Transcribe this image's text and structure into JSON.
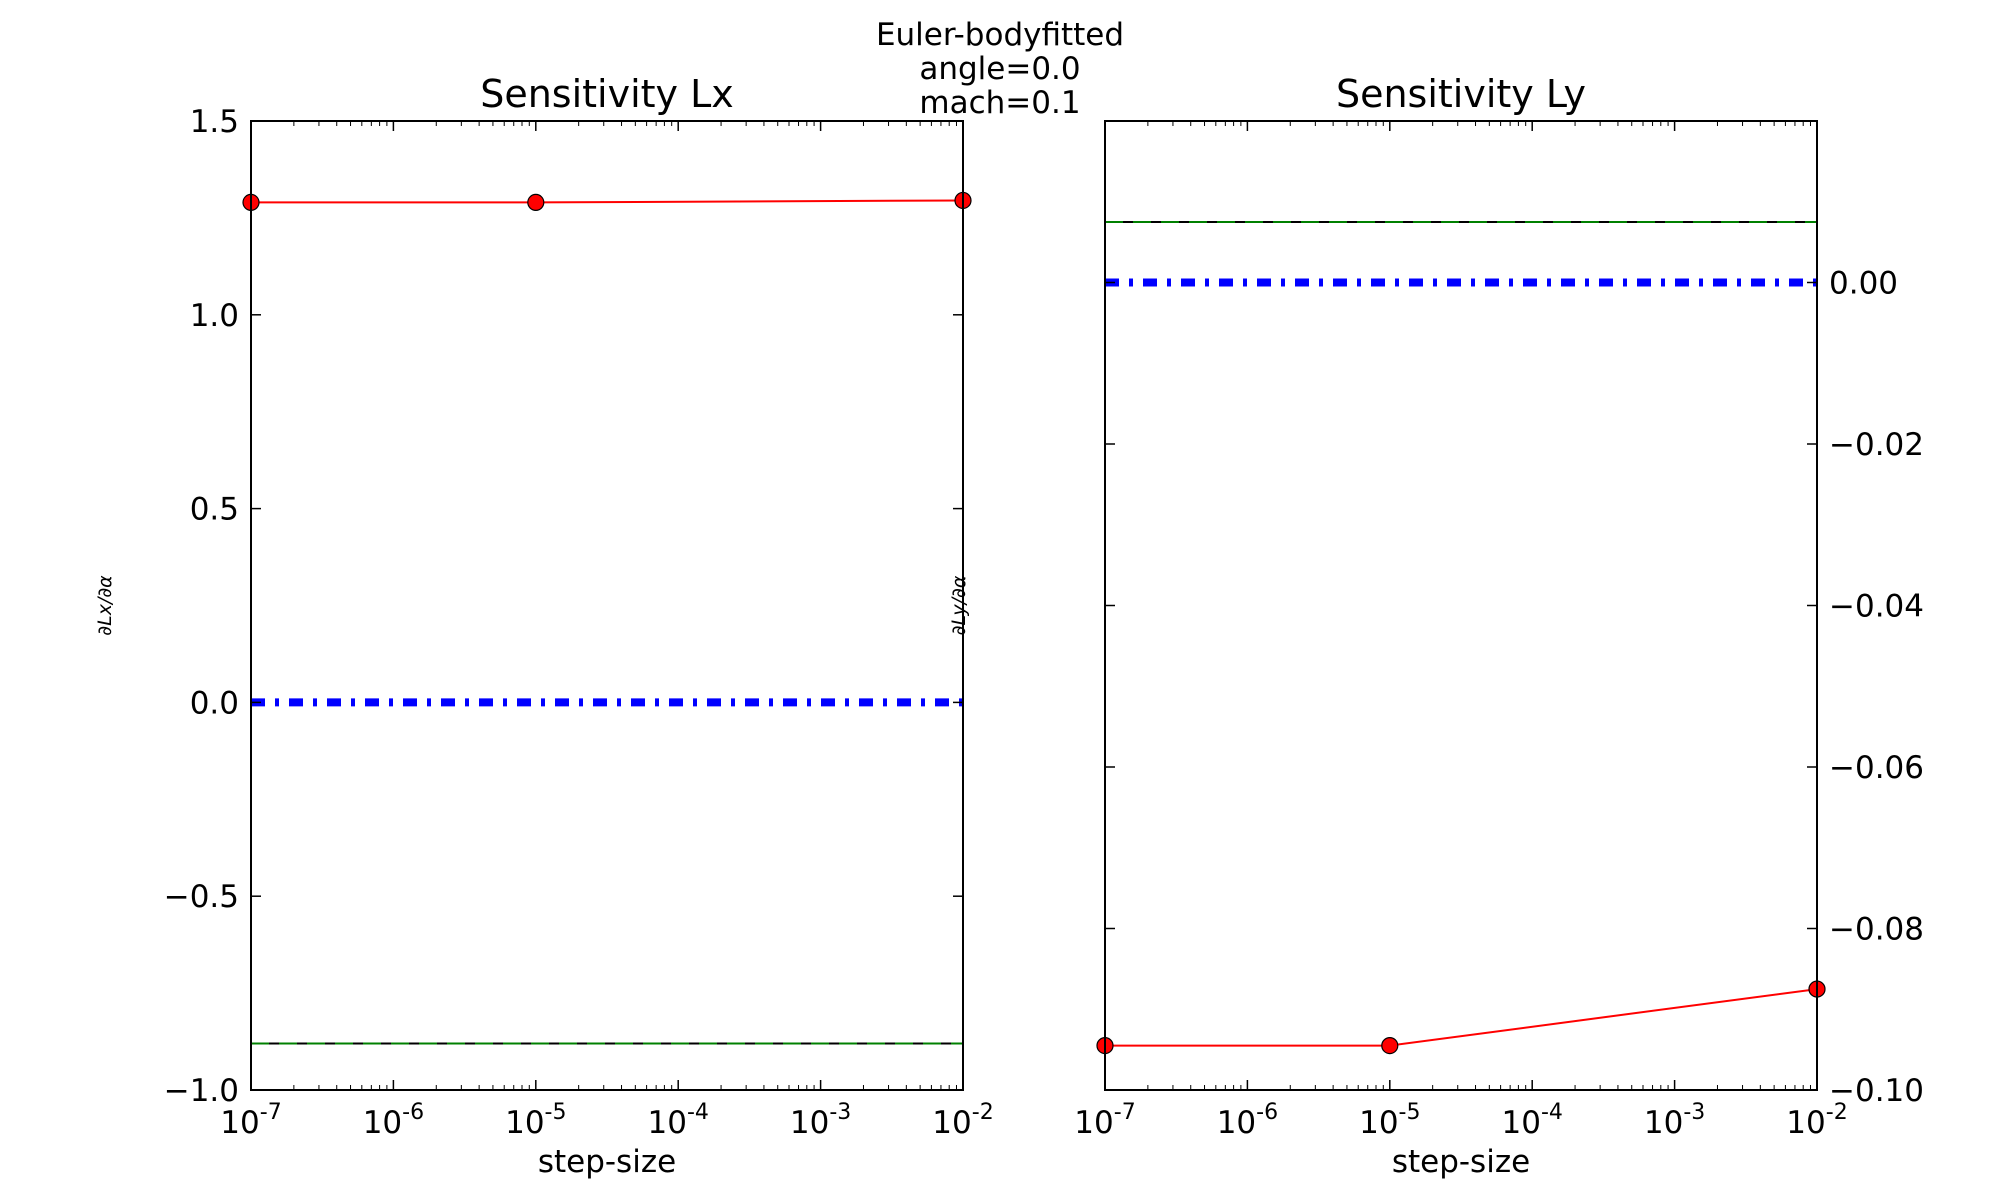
{
  "figure": {
    "suptitle": "Euler-bodyfitted\nangle=0.0\nmach=0.1"
  },
  "chart_data": [
    {
      "type": "line",
      "title": "Sensitivity Lx",
      "xlabel": "step-size",
      "ylabel": "∂Lx/∂α",
      "xscale": "log",
      "xlim": [
        1e-07,
        0.01
      ],
      "ylim": [
        -1.0,
        1.5
      ],
      "xticks": [
        {
          "base": "10",
          "exp": "-7"
        },
        {
          "base": "10",
          "exp": "-6"
        },
        {
          "base": "10",
          "exp": "-5"
        },
        {
          "base": "10",
          "exp": "-4"
        },
        {
          "base": "10",
          "exp": "-3"
        },
        {
          "base": "10",
          "exp": "-2"
        }
      ],
      "yticks": [
        "1.5",
        "1.0",
        "0.5",
        "0.0",
        "−0.5",
        "−1.0"
      ],
      "ytick_values": [
        1.5,
        1.0,
        0.5,
        0.0,
        -0.5,
        -1.0
      ],
      "yaxis_side": "left",
      "grid": false,
      "series": [
        {
          "x": [
            1e-07,
            1e-05,
            0.01
          ],
          "y": [
            1.29,
            1.29,
            1.295
          ],
          "color": "#ff0000",
          "style": "solid",
          "marker": "circle"
        },
        {
          "x": [
            1e-07,
            0.01
          ],
          "y": [
            0.0,
            0.0
          ],
          "color": "#0000ff",
          "style": "dashdot"
        },
        {
          "x": [
            1e-07,
            0.01
          ],
          "y": [
            -0.88,
            -0.88
          ],
          "color": "#000000",
          "style": "solid"
        },
        {
          "x": [
            1e-07,
            0.01
          ],
          "y": [
            -0.88,
            -0.88
          ],
          "color": "#008000",
          "style": "dashed"
        }
      ]
    },
    {
      "type": "line",
      "title": "Sensitivity Ly",
      "xlabel": "step-size",
      "ylabel": "∂Ly/∂α",
      "xscale": "log",
      "xlim": [
        1e-07,
        0.01
      ],
      "ylim": [
        -0.1,
        0.02
      ],
      "xticks": [
        {
          "base": "10",
          "exp": "-7"
        },
        {
          "base": "10",
          "exp": "-6"
        },
        {
          "base": "10",
          "exp": "-5"
        },
        {
          "base": "10",
          "exp": "-4"
        },
        {
          "base": "10",
          "exp": "-3"
        },
        {
          "base": "10",
          "exp": "-2"
        }
      ],
      "yticks": [
        "0.00",
        "−0.02",
        "−0.04",
        "−0.06",
        "−0.08",
        "−0.10"
      ],
      "ytick_values": [
        0.0,
        -0.02,
        -0.04,
        -0.06,
        -0.08,
        -0.1
      ],
      "yaxis_side": "right",
      "grid": false,
      "series": [
        {
          "x": [
            1e-07,
            1e-05,
            0.01
          ],
          "y": [
            -0.0945,
            -0.0945,
            -0.0875
          ],
          "color": "#ff0000",
          "style": "solid",
          "marker": "circle"
        },
        {
          "x": [
            1e-07,
            0.01
          ],
          "y": [
            0.0,
            0.0
          ],
          "color": "#0000ff",
          "style": "dashdot"
        },
        {
          "x": [
            1e-07,
            0.01
          ],
          "y": [
            0.0075,
            0.0075
          ],
          "color": "#000000",
          "style": "solid"
        },
        {
          "x": [
            1e-07,
            0.01
          ],
          "y": [
            0.0075,
            0.0075
          ],
          "color": "#008000",
          "style": "dashed"
        }
      ]
    }
  ]
}
